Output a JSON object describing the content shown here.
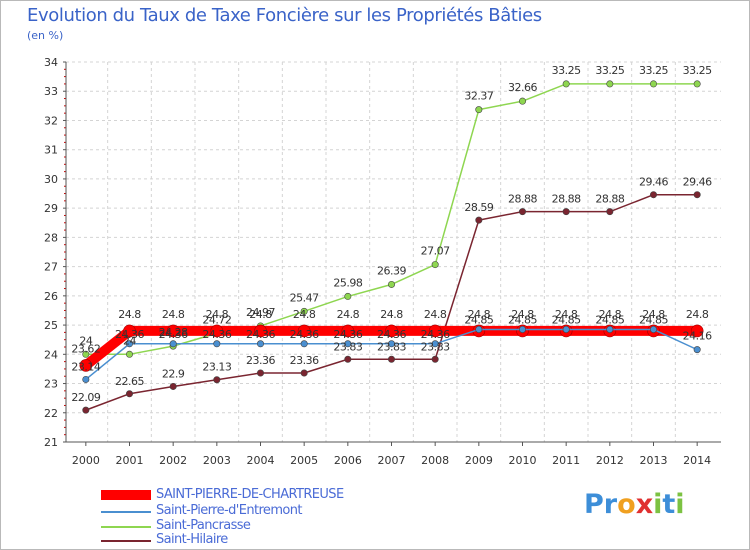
{
  "title": "Evolution du Taux de Taxe Foncière sur les Propriétés Bâties",
  "unit_label": "(en %)",
  "logo": {
    "letters": [
      "P",
      "r",
      "o",
      "x",
      "i",
      "t",
      "i"
    ],
    "colors": [
      "#3d8ed8",
      "#3d8ed8",
      "#f0a020",
      "#e03030",
      "#7cc242",
      "#3d8ed8",
      "#7cc242"
    ]
  },
  "chart_data": {
    "type": "line",
    "title": "Evolution du Taux de Taxe Foncière sur les Propriétés Bâties",
    "ylabel": "(en %)",
    "xlabel": "",
    "ylim": [
      21,
      34
    ],
    "grid": true,
    "yticks": [
      "21",
      "22",
      "23",
      "24",
      "25",
      "26",
      "27",
      "28",
      "29",
      "30",
      "31",
      "32",
      "33",
      "34"
    ],
    "categories": [
      "2000",
      "2001",
      "2002",
      "2003",
      "2004",
      "2005",
      "2006",
      "2007",
      "2008",
      "2009",
      "2010",
      "2011",
      "2012",
      "2013",
      "2014"
    ],
    "series": [
      {
        "name": "SAINT-PIERRE-DE-CHARTREUSE",
        "color": "#ff0000",
        "values": [
          23.62,
          24.8,
          24.8,
          24.8,
          24.8,
          24.8,
          24.8,
          24.8,
          24.8,
          24.8,
          24.8,
          24.8,
          24.8,
          24.8,
          24.8
        ],
        "labels": [
          "23.62",
          "24.8",
          "24.8",
          "24.8",
          "24.8",
          "24.8",
          "24.8",
          "24.8",
          "24.8",
          "24.8",
          "24.8",
          "24.8",
          "24.8",
          "24.8",
          "24.8"
        ]
      },
      {
        "name": "Saint-Pierre-d'Entremont",
        "color": "#4a8fd0",
        "values": [
          23.14,
          24.36,
          24.36,
          24.36,
          24.36,
          24.36,
          24.36,
          24.36,
          24.36,
          24.85,
          24.85,
          24.85,
          24.85,
          24.85,
          24.16
        ],
        "labels": [
          "23.14",
          "24.36",
          "24.36",
          "24.36",
          "24.36",
          "24.36",
          "24.36",
          "24.36",
          "24.36",
          "24.85",
          "24.85",
          "24.85",
          "24.85",
          "24.85",
          "24.16"
        ]
      },
      {
        "name": "Saint-Pancrasse",
        "color": "#8ed650",
        "values": [
          24.0,
          24.0,
          24.28,
          24.72,
          24.97,
          25.47,
          25.98,
          26.39,
          27.07,
          32.37,
          32.66,
          33.25,
          33.25,
          33.25,
          33.25
        ],
        "labels": [
          "24",
          "24",
          "24.28",
          "24.72",
          "24.97",
          "25.47",
          "25.98",
          "26.39",
          "27.07",
          "32.37",
          "32.66",
          "33.25",
          "33.25",
          "33.25",
          "33.25"
        ]
      },
      {
        "name": "Saint-Hilaire",
        "color": "#7a2530",
        "values": [
          22.09,
          22.65,
          22.9,
          23.13,
          23.36,
          23.36,
          23.83,
          23.83,
          23.83,
          28.59,
          28.88,
          28.88,
          28.88,
          29.46,
          29.46
        ],
        "labels": [
          "22.09",
          "22.65",
          "22.9",
          "23.13",
          "23.36",
          "23.36",
          "23.83",
          "23.83",
          "23.83",
          "28.59",
          "28.88",
          "28.88",
          "28.88",
          "29.46",
          "29.46"
        ]
      }
    ]
  }
}
